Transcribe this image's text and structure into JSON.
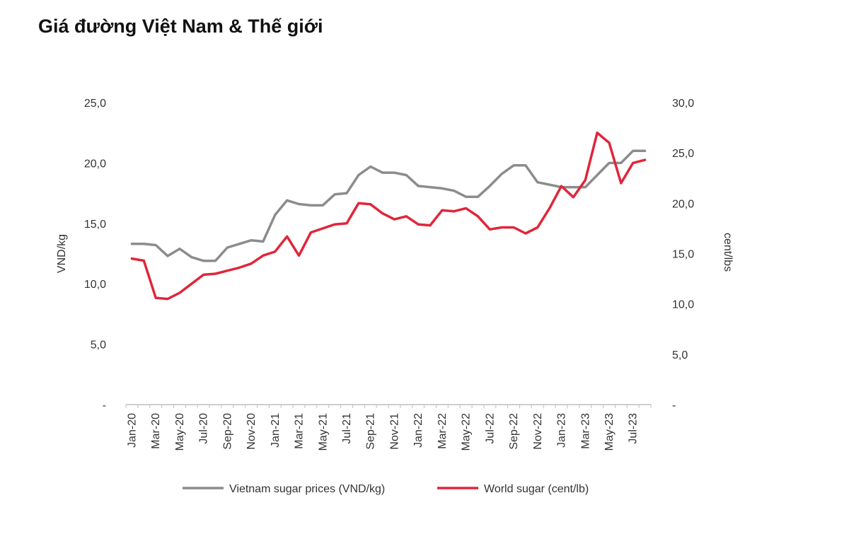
{
  "page": {
    "title": "Giá đường Việt Nam & Thế giới"
  },
  "chart_data": {
    "type": "line",
    "title": "Giá đường Việt Nam & Thế giới",
    "xlabel": "",
    "ylabel": "VND/kg",
    "y2label": "cent/lbs",
    "ylim": [
      0,
      25
    ],
    "y2lim": [
      0,
      30
    ],
    "y_ticks": [
      "-",
      "5,0",
      "10,0",
      "15,0",
      "20,0",
      "25,0"
    ],
    "y2_ticks": [
      "-",
      "5,0",
      "10,0",
      "15,0",
      "20,0",
      "25,0",
      "30,0"
    ],
    "grid": false,
    "legend": "bottom",
    "categories": [
      "Jan-20",
      "Feb-20",
      "Mar-20",
      "Apr-20",
      "May-20",
      "Jun-20",
      "Jul-20",
      "Aug-20",
      "Sep-20",
      "Oct-20",
      "Nov-20",
      "Dec-20",
      "Jan-21",
      "Feb-21",
      "Mar-21",
      "Apr-21",
      "May-21",
      "Jun-21",
      "Jul-21",
      "Aug-21",
      "Sep-21",
      "Oct-21",
      "Nov-21",
      "Dec-21",
      "Jan-22",
      "Feb-22",
      "Mar-22",
      "Apr-22",
      "May-22",
      "Jun-22",
      "Jul-22",
      "Aug-22",
      "Sep-22",
      "Oct-22",
      "Nov-22",
      "Dec-22",
      "Jan-23",
      "Feb-23",
      "Mar-23",
      "Apr-23",
      "May-23",
      "Jun-23",
      "Jul-23",
      "Aug-23"
    ],
    "x_tick_labels": [
      "Jan-20",
      "Mar-20",
      "May-20",
      "Jul-20",
      "Sep-20",
      "Nov-20",
      "Jan-21",
      "Mar-21",
      "May-21",
      "Jul-21",
      "Sep-21",
      "Nov-21",
      "Jan-22",
      "Mar-22",
      "May-22",
      "Jul-22",
      "Sep-22",
      "Nov-22",
      "Jan-23",
      "Mar-23",
      "May-23",
      "Jul-23"
    ],
    "series": [
      {
        "name": "Vietnam sugar prices (VND/kg)",
        "axis": "left",
        "color": "#8c8c8c",
        "values": [
          13.3,
          13.3,
          13.2,
          12.3,
          12.9,
          12.2,
          11.9,
          11.9,
          13.0,
          13.3,
          13.6,
          13.5,
          15.7,
          16.9,
          16.6,
          16.5,
          16.5,
          17.4,
          17.5,
          19.0,
          19.7,
          19.2,
          19.2,
          19.0,
          18.1,
          18.0,
          17.9,
          17.7,
          17.2,
          17.2,
          18.1,
          19.1,
          19.8,
          19.8,
          18.4,
          18.2,
          18.0,
          18.0,
          18.0,
          19.0,
          20.0,
          20.0,
          21.0,
          21.0
        ]
      },
      {
        "name": "World sugar (cent/lb)",
        "axis": "right",
        "color": "#e0263a",
        "values": [
          14.5,
          14.3,
          10.6,
          10.5,
          11.1,
          12.0,
          12.9,
          13.0,
          13.3,
          13.6,
          14.0,
          14.8,
          15.2,
          16.7,
          14.8,
          17.1,
          17.5,
          17.9,
          18.0,
          20.0,
          19.9,
          19.0,
          18.4,
          18.7,
          17.9,
          17.8,
          19.3,
          19.2,
          19.5,
          18.7,
          17.4,
          17.6,
          17.6,
          17.0,
          17.6,
          19.5,
          21.7,
          20.6,
          22.3,
          27.0,
          26.0,
          22.0,
          24.0,
          24.3
        ]
      }
    ]
  }
}
